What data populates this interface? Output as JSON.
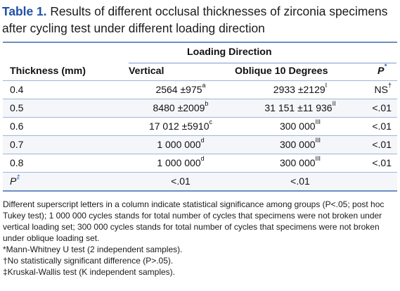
{
  "caption": {
    "label": "Table 1.",
    "text": "Results of different occlusal thicknesses of zirconia specimens after cycling test under different loading direction"
  },
  "headers": {
    "group": "Loading Direction",
    "thickness": "Thickness (mm)",
    "vertical": "Vertical",
    "oblique": "Oblique 10 Degrees",
    "p": "P",
    "p_mark": "*"
  },
  "rows": [
    {
      "thickness": "0.4",
      "vertical": "2564 ±975",
      "vertical_sup": "a",
      "oblique": "2933 ±2129",
      "oblique_sup": "I",
      "p": "NS",
      "p_sup": "†"
    },
    {
      "thickness": "0.5",
      "vertical": "8480 ±2009",
      "vertical_sup": "b",
      "oblique": "31 151 ±11 936",
      "oblique_sup": "II",
      "p": "<.01",
      "p_sup": ""
    },
    {
      "thickness": "0.6",
      "vertical": "17 012 ±5910",
      "vertical_sup": "c",
      "oblique": "300 000",
      "oblique_sup": "III",
      "p": "<.01",
      "p_sup": ""
    },
    {
      "thickness": "0.7",
      "vertical": "1 000 000",
      "vertical_sup": "d",
      "oblique": "300 000",
      "oblique_sup": "III",
      "p": "<.01",
      "p_sup": ""
    },
    {
      "thickness": "0.8",
      "vertical": "1 000 000",
      "vertical_sup": "d",
      "oblique": "300 000",
      "oblique_sup": "III",
      "p": "<.01",
      "p_sup": ""
    },
    {
      "thickness": "P",
      "thickness_sup": "‡",
      "vertical": "<.01",
      "vertical_sup": "",
      "oblique": "<.01",
      "oblique_sup": "",
      "p": "",
      "p_sup": ""
    }
  ],
  "notes": {
    "main": "Different superscript letters in a column indicate statistical significance among groups (P<.05; post hoc Tukey test); 1 000 000 cycles stands for total number of cycles that specimens were not broken under vertical loading set; 300 000 cycles stands for total number of cycles that specimens were not broken under oblique loading set.",
    "star": "*Mann-Whitney U test (2 independent samples).",
    "dagger": "†No statistically significant difference (P>.05).",
    "ddagger": "‡Kruskal-Wallis test (K independent samples)."
  }
}
